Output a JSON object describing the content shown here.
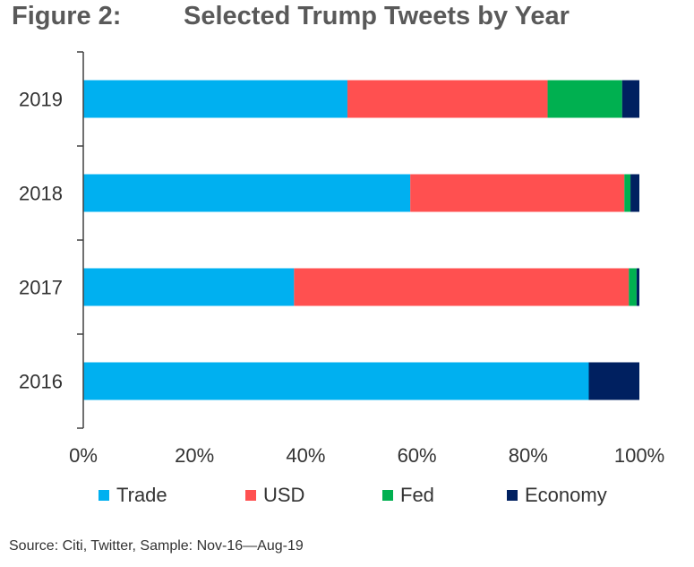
{
  "title": {
    "figure_label": "Figure 2:",
    "text": "Selected Trump Tweets by Year"
  },
  "chart_data": {
    "type": "bar",
    "orientation": "horizontal",
    "stacked": true,
    "categories": [
      "2019",
      "2018",
      "2017",
      "2016"
    ],
    "series": [
      {
        "name": "Trade",
        "color": "#00B0F0",
        "values": [
          47.5,
          58.8,
          37.9,
          90.9
        ]
      },
      {
        "name": "USD",
        "color": "#FF5050",
        "values": [
          36.0,
          38.5,
          60.2,
          0
        ]
      },
      {
        "name": "Fed",
        "color": "#00B050",
        "values": [
          13.4,
          1.1,
          1.4,
          0
        ]
      },
      {
        "name": "Economy",
        "color": "#002060",
        "values": [
          3.1,
          1.6,
          0.5,
          9.1
        ]
      }
    ],
    "xlim": [
      0,
      100
    ],
    "xticks": [
      "0%",
      "20%",
      "40%",
      "60%",
      "80%",
      "100%"
    ],
    "xlabel": "",
    "ylabel": "",
    "legend_position": "bottom",
    "grid": false
  },
  "source": "Source: Citi, Twitter, Sample: Nov-16—Aug-19"
}
